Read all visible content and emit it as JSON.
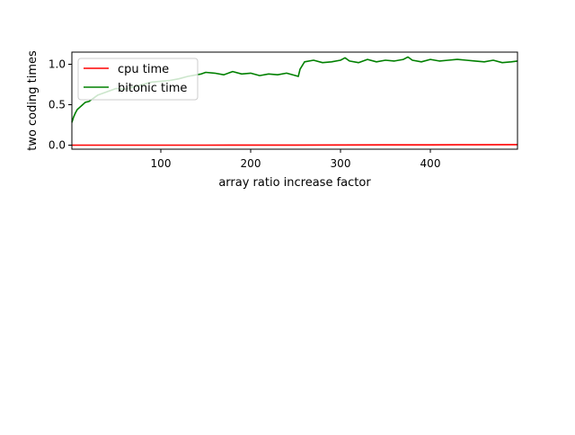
{
  "chart_data": {
    "type": "line",
    "title": "",
    "xlabel": "array ratio increase factor",
    "ylabel": "two coding times",
    "xlim": [
      1,
      497
    ],
    "ylim": [
      -0.05,
      1.15
    ],
    "x_ticks": [
      100,
      200,
      300,
      400
    ],
    "y_ticks": [
      0.0,
      0.5,
      1.0
    ],
    "x_tick_labels": [
      "100",
      "200",
      "300",
      "400"
    ],
    "y_tick_labels": [
      "0.0",
      "0.5",
      "1.0"
    ],
    "grid": false,
    "legend": {
      "placement": "upper-left",
      "entries": [
        "cpu time",
        "bitonic time"
      ]
    },
    "series": [
      {
        "name": "cpu time",
        "color": "#ff0000",
        "x": [
          1,
          50,
          100,
          150,
          200,
          250,
          300,
          350,
          400,
          450,
          497
        ],
        "y": [
          0.0,
          0.0,
          0.0,
          0.0,
          0.001,
          0.001,
          0.002,
          0.003,
          0.004,
          0.005,
          0.006
        ]
      },
      {
        "name": "bitonic time",
        "color": "#008000",
        "x": [
          1,
          3,
          5,
          7,
          10,
          13,
          16,
          20,
          25,
          30,
          40,
          50,
          60,
          70,
          80,
          90,
          100,
          110,
          120,
          130,
          140,
          145,
          150,
          160,
          170,
          180,
          190,
          200,
          210,
          220,
          230,
          240,
          250,
          253,
          255,
          260,
          270,
          280,
          290,
          300,
          305,
          310,
          320,
          330,
          340,
          350,
          360,
          370,
          375,
          380,
          390,
          400,
          410,
          420,
          430,
          440,
          450,
          460,
          470,
          480,
          490,
          497
        ],
        "y": [
          0.28,
          0.35,
          0.4,
          0.44,
          0.47,
          0.5,
          0.53,
          0.54,
          0.58,
          0.62,
          0.66,
          0.7,
          0.69,
          0.72,
          0.75,
          0.78,
          0.79,
          0.8,
          0.82,
          0.85,
          0.87,
          0.88,
          0.9,
          0.89,
          0.87,
          0.91,
          0.88,
          0.89,
          0.86,
          0.88,
          0.87,
          0.89,
          0.86,
          0.85,
          0.94,
          1.03,
          1.05,
          1.02,
          1.03,
          1.05,
          1.08,
          1.04,
          1.02,
          1.06,
          1.03,
          1.05,
          1.04,
          1.06,
          1.09,
          1.05,
          1.03,
          1.06,
          1.04,
          1.05,
          1.06,
          1.05,
          1.04,
          1.03,
          1.05,
          1.02,
          1.03,
          1.04
        ]
      }
    ]
  }
}
